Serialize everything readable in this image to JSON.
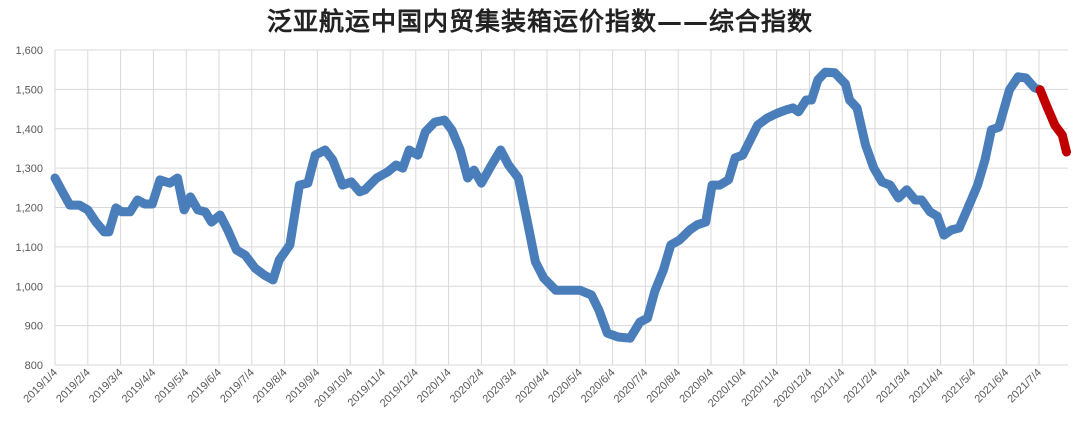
{
  "chart_data": {
    "type": "line",
    "title": "泛亚航运中国内贸集装箱运价指数——综合指数",
    "xlabel": "",
    "ylabel": "",
    "ylim": [
      800,
      1600
    ],
    "yticks": [
      "800",
      "900",
      "1,000",
      "1,100",
      "1,200",
      "1,300",
      "1,400",
      "1,500",
      "1,600"
    ],
    "ytick_values": [
      800,
      900,
      1000,
      1100,
      1200,
      1300,
      1400,
      1500,
      1600
    ],
    "xticks": [
      "2019/1/4",
      "2019/2/4",
      "2019/3/4",
      "2019/4/4",
      "2019/5/4",
      "2019/6/4",
      "2019/7/4",
      "2019/8/4",
      "2019/9/4",
      "2019/10/4",
      "2019/11/4",
      "2019/12/4",
      "2020/1/4",
      "2020/2/4",
      "2020/3/4",
      "2020/4/4",
      "2020/5/4",
      "2020/6/4",
      "2020/7/4",
      "2020/8/4",
      "2020/9/4",
      "2020/10/4",
      "2020/11/4",
      "2020/12/4",
      "2021/1/4",
      "2021/2/4",
      "2021/3/4",
      "2021/4/4",
      "2021/5/4",
      "2021/6/4",
      "2021/7/4"
    ],
    "grid": true,
    "legend": "none",
    "colors": {
      "line": "#4a7ebb",
      "highlight": "#c00000",
      "grid": "#d9d9d9"
    },
    "highlight_from": "2021-07-05",
    "points": [
      [
        "2019-01-04",
        1275
      ],
      [
        "2019-01-10",
        1245
      ],
      [
        "2019-01-18",
        1206
      ],
      [
        "2019-01-27",
        1206
      ],
      [
        "2019-02-04",
        1194
      ],
      [
        "2019-02-11",
        1163
      ],
      [
        "2019-02-18",
        1138
      ],
      [
        "2019-02-22",
        1138
      ],
      [
        "2019-02-28",
        1199
      ],
      [
        "2019-03-05",
        1189
      ],
      [
        "2019-03-13",
        1189
      ],
      [
        "2019-03-20",
        1219
      ],
      [
        "2019-03-27",
        1209
      ],
      [
        "2019-04-03",
        1209
      ],
      [
        "2019-04-10",
        1270
      ],
      [
        "2019-04-19",
        1262
      ],
      [
        "2019-04-26",
        1275
      ],
      [
        "2019-05-02",
        1194
      ],
      [
        "2019-05-08",
        1227
      ],
      [
        "2019-05-15",
        1194
      ],
      [
        "2019-05-22",
        1189
      ],
      [
        "2019-05-28",
        1163
      ],
      [
        "2019-06-05",
        1181
      ],
      [
        "2019-06-12",
        1143
      ],
      [
        "2019-06-20",
        1092
      ],
      [
        "2019-06-28",
        1079
      ],
      [
        "2019-07-07",
        1046
      ],
      [
        "2019-07-16",
        1028
      ],
      [
        "2019-07-24",
        1016
      ],
      [
        "2019-07-30",
        1067
      ],
      [
        "2019-08-09",
        1105
      ],
      [
        "2019-08-18",
        1257
      ],
      [
        "2019-08-26",
        1262
      ],
      [
        "2019-09-02",
        1333
      ],
      [
        "2019-09-11",
        1346
      ],
      [
        "2019-09-18",
        1321
      ],
      [
        "2019-09-27",
        1257
      ],
      [
        "2019-10-05",
        1265
      ],
      [
        "2019-10-13",
        1240
      ],
      [
        "2019-10-18",
        1245
      ],
      [
        "2019-10-29",
        1275
      ],
      [
        "2019-11-08",
        1290
      ],
      [
        "2019-11-16",
        1308
      ],
      [
        "2019-11-22",
        1300
      ],
      [
        "2019-11-28",
        1346
      ],
      [
        "2019-12-06",
        1333
      ],
      [
        "2019-12-13",
        1392
      ],
      [
        "2019-12-22",
        1417
      ],
      [
        "2019-12-31",
        1422
      ],
      [
        "2020-01-07",
        1397
      ],
      [
        "2020-01-15",
        1346
      ],
      [
        "2020-01-22",
        1275
      ],
      [
        "2020-01-28",
        1295
      ],
      [
        "2020-02-04",
        1262
      ],
      [
        "2020-02-13",
        1308
      ],
      [
        "2020-02-21",
        1346
      ],
      [
        "2020-02-28",
        1308
      ],
      [
        "2020-03-08",
        1275
      ],
      [
        "2020-03-17",
        1156
      ],
      [
        "2020-03-24",
        1062
      ],
      [
        "2020-04-01",
        1021
      ],
      [
        "2020-04-12",
        990
      ],
      [
        "2020-04-23",
        990
      ],
      [
        "2020-05-04",
        990
      ],
      [
        "2020-05-15",
        978
      ],
      [
        "2020-05-22",
        940
      ],
      [
        "2020-05-30",
        881
      ],
      [
        "2020-06-09",
        871
      ],
      [
        "2020-06-20",
        868
      ],
      [
        "2020-06-29",
        909
      ],
      [
        "2020-07-06",
        919
      ],
      [
        "2020-07-13",
        988
      ],
      [
        "2020-07-21",
        1041
      ],
      [
        "2020-07-28",
        1105
      ],
      [
        "2020-08-05",
        1117
      ],
      [
        "2020-08-15",
        1143
      ],
      [
        "2020-08-22",
        1156
      ],
      [
        "2020-08-30",
        1163
      ],
      [
        "2020-09-05",
        1257
      ],
      [
        "2020-09-12",
        1257
      ],
      [
        "2020-09-20",
        1270
      ],
      [
        "2020-09-26",
        1326
      ],
      [
        "2020-10-03",
        1333
      ],
      [
        "2020-10-10",
        1371
      ],
      [
        "2020-10-17",
        1409
      ],
      [
        "2020-10-26",
        1427
      ],
      [
        "2020-11-05",
        1440
      ],
      [
        "2020-11-13",
        1448
      ],
      [
        "2020-11-19",
        1453
      ],
      [
        "2020-11-24",
        1443
      ],
      [
        "2020-12-01",
        1473
      ],
      [
        "2020-12-06",
        1473
      ],
      [
        "2020-12-12",
        1524
      ],
      [
        "2020-12-19",
        1544
      ],
      [
        "2020-12-28",
        1542
      ],
      [
        "2021-01-07",
        1514
      ],
      [
        "2021-01-11",
        1473
      ],
      [
        "2021-01-18",
        1453
      ],
      [
        "2021-01-26",
        1359
      ],
      [
        "2021-02-03",
        1300
      ],
      [
        "2021-02-10",
        1265
      ],
      [
        "2021-02-17",
        1257
      ],
      [
        "2021-02-24",
        1224
      ],
      [
        "2021-03-03",
        1245
      ],
      [
        "2021-03-11",
        1219
      ],
      [
        "2021-03-17",
        1219
      ],
      [
        "2021-03-25",
        1189
      ],
      [
        "2021-04-01",
        1178
      ],
      [
        "2021-04-07",
        1130
      ],
      [
        "2021-04-14",
        1143
      ],
      [
        "2021-04-21",
        1148
      ],
      [
        "2021-04-29",
        1199
      ],
      [
        "2021-05-08",
        1257
      ],
      [
        "2021-05-15",
        1321
      ],
      [
        "2021-05-21",
        1397
      ],
      [
        "2021-05-28",
        1404
      ],
      [
        "2021-06-07",
        1499
      ],
      [
        "2021-06-15",
        1532
      ],
      [
        "2021-06-22",
        1529
      ],
      [
        "2021-06-30",
        1504
      ],
      [
        "2021-07-05",
        1499
      ],
      [
        "2021-07-12",
        1453
      ],
      [
        "2021-07-19",
        1409
      ],
      [
        "2021-07-26",
        1384
      ],
      [
        "2021-07-30",
        1341
      ]
    ]
  }
}
